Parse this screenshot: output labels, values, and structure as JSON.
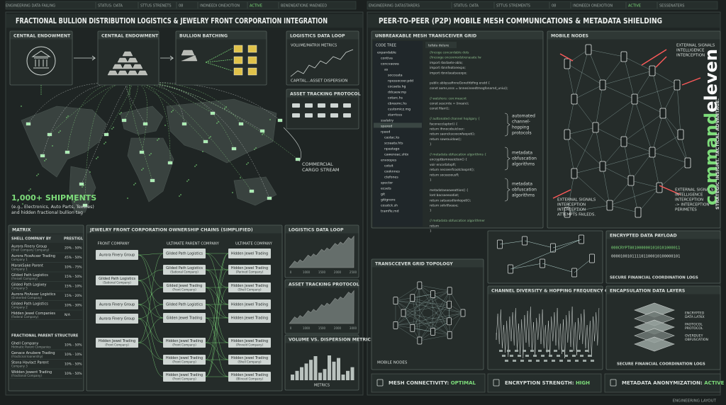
{
  "status_left": [
    "ENGINEERING DATA FAILING",
    "STATUS: DATA",
    "STTUS STRENETS",
    "08",
    "INDNEEDI ONEXOTION",
    "ACTIVE",
    "BENENEATIONE MAENEED"
  ],
  "status_right": [
    "ENGINEERING DATASTARERS",
    "STATUS: DATA",
    "STTUS STREMENTS",
    "08",
    "INDNEEDI ONEXOTION",
    "ACTIVE",
    "SESSENATERS"
  ],
  "left": {
    "title": "FRACTIONAL BULLION DISTRIBUTION LOGISTICS & JEWELRY FRONT CORPORATION INTEGRATION",
    "endowment1": "CENTRAL ENDOWMENT",
    "endowment2": "CENTRAL ENDOWMENT",
    "batching": "BULLION BATCHING",
    "loop": {
      "title": "LOGISTICS DATA LOOP",
      "subtitle": "VOLUME/MATRIX METRICS",
      "caption": "CAPITAL...ASSET DISPERSION"
    },
    "tracking": "ASSET TRACKING PROTOCOL",
    "cargo": [
      "COMMERCIAL",
      "CARGO STREAM"
    ],
    "shipments": "1,000+ SHIPMENTS",
    "shipments_note": [
      "(e.g., Electronics, Auto Parts, Textiles)",
      "and hidden fractional bullion tag"
    ],
    "matrix": {
      "title": "MATRIX",
      "headers": [
        "SHELL COMPANY BY",
        "PRESTIGL"
      ],
      "rows": [
        [
          "Aurora Finery Group",
          "(Shell Company Company)",
          "20% - 50%"
        ],
        [
          "Aurora FiceAcxer Trading",
          "Company 1",
          "45% - 50%"
        ],
        [
          "MarakSake Parent",
          "Company 1",
          "10% - 75%"
        ],
        [
          "Gilded Path Logistics",
          "(Freisell Company)",
          "15% - 50%"
        ],
        [
          "Gilded Path Logixey",
          "Company 5",
          "15% - 10%"
        ],
        [
          "Aurora FinAsser Logistics",
          "(Enmerted Company)",
          "15% - 20%"
        ],
        [
          "Gilded Path Logistics",
          "Company 2",
          "10% - 30%"
        ],
        [
          "Hidden Jewel Companies",
          "(Federal Company)",
          "N/A"
        ]
      ],
      "section": "FRACTIONAL PARENT STRUCTURE",
      "rows2": [
        [
          "Ghell Company",
          "Hidmatic Parent Companies",
          "10% - 50%"
        ],
        [
          "Genace Anubere Trading",
          "(Fracticnal Ioanershiy)",
          "10% - 10%"
        ],
        [
          "Stona Havlact Parent",
          "Company 3",
          "10% - 50%"
        ],
        [
          "Widden Jowent Trading",
          "(Fractional Company)",
          "10% - 50%"
        ]
      ]
    },
    "chains": {
      "title": "JEWELRY FRONT CORPORATION OWNERSHIP CHAINS (SIMPLIFIED)",
      "columns": [
        "FRONT COMPANY",
        "ULTIMATE PARENT COMPANY",
        "ULTIMATE COMPANY"
      ],
      "front": [
        {
          "name": "Aurora Finery Group"
        },
        {
          "name": "Gilded Path Logistics",
          "sub": "(Sational Company)"
        },
        {
          "name": "Aurora Finery Group"
        },
        {
          "name": "Aurora Finery Group"
        },
        {
          "name": "Hidden Jewel Trading",
          "sub": "(Front Company)"
        }
      ],
      "parent": [
        {
          "name": "Gilded Path Logistics"
        },
        {
          "name": "Gilded Path Logistics",
          "sub": "(Sational Company)"
        },
        {
          "name": "Gilded Jewel Trading",
          "sub": "(Front Company)"
        },
        {
          "name": "Gilded Path Logistics"
        },
        {
          "name": "Gilden Jewel Trading"
        },
        {
          "name": "Hidden Jewel Trading",
          "sub": "(Front Company)"
        },
        {
          "name": "Hidden Jewel Trading",
          "sub": "(Front Company)"
        },
        {
          "name": "Hidden Jewel Trading",
          "sub": "(Front Company)"
        }
      ],
      "ultimate": [
        {
          "name": "Hidden Jewel Trading"
        },
        {
          "name": "Hidden Jewel Trading",
          "sub": "(Parined Company)"
        },
        {
          "name": "Hidden Jewel Trading",
          "sub": "(Shell Company)"
        },
        {
          "name": "Hidden Jewel Trading"
        },
        {
          "name": "Hidden Jewel Trading"
        },
        {
          "name": "Hidden Jewel Trading",
          "sub": "(Pinneld Company)"
        },
        {
          "name": "Hidden Jewel Trading",
          "sub": "(Shell Company)"
        },
        {
          "name": "Hidden Jewel Trading",
          "sub": "(Blinced Company)"
        }
      ]
    },
    "mini": [
      {
        "title": "LOGISTICS DATA LOOP",
        "ticks": [
          "0",
          "1000",
          "1500",
          "2000",
          "2500"
        ]
      },
      {
        "title": "ASSET TRACKING PROTOCOL",
        "ticks": [
          "0",
          "1000",
          "1500",
          "2000",
          "3000"
        ]
      },
      {
        "title": "VOLUME VS. DISPERSION METRICS",
        "label": "METRICS"
      }
    ]
  },
  "right": {
    "title": "PEER-TO-PEER (P2P) MOBILE MESH COMMUNICATIONS & METADATA SHIELDING",
    "grid": {
      "title": "UNBREAKABLE MESH TRANSCEIVER GRID",
      "tree_title": "CODE TREE",
      "tab": "tefala delure",
      "tree": [
        "expandable",
        "contiva",
        "concvaewa",
        "as",
        "socceata",
        "npessocoer.pdd",
        "cocaeta.hg",
        "ddcaew.mp",
        "cotarc.hs",
        "cbreemc.hs",
        "customicz.mg",
        "starrtces",
        "ssalatry",
        "spaxed",
        "rpaed",
        "castac.ks",
        "scoaata.hts",
        "npastago",
        "cawenoac.shtx",
        "envoopes",
        "cotsit",
        "cooknnes",
        "ctefones",
        "spector",
        "ecsets",
        "git",
        "gitignore",
        "cosstck.sh",
        "tramfle.md"
      ],
      "code": [
        "//incoge concordable dots",
        "//incooge onconmodstrenasate lw",
        "import rbsdaete-ablo;",
        "import rbnnfeatseexpo;",
        "import rbnnlseatseexpo;",
        "",
        "public ablqcasfinneGonethbfing eratd {",
        "  const aoms,ssss = bnnesineedtmegfonarnd_uniu();",
        "",
        "  // watshors: con:meacnt",
        "  const sescrnte = (ineaiv);",
        "  const filarr();",
        "",
        "  // auttonated channel hoplgary {",
        "  faconecclaptor() {",
        "    return ifnnocobuicloer;",
        "    return saenckscoocwfaopet();",
        "    return sowrouidow();",
        "  }",
        "",
        "  // metadata obfuscation algorithms {",
        "  encryptbsmneeiction() {",
        "    voir encortatvpfi;",
        "    return necseerfcootcloopnt();",
        "    return soceeoousfl;",
        "  }",
        "",
        "  metadataeasweattion() {",
        "    lont bacsaeeoatiot;",
        "    return satsaosdlonkopetl();",
        "    return sotvtfsease;",
        "  }",
        "",
        "  // metadata obfuscation algorithmer",
        "  return",
        "}"
      ],
      "notes": [
        [
          "automated",
          "channel-",
          "hopping",
          "protocols"
        ],
        [
          "metadata",
          "obfuscation",
          "algorithms"
        ],
        [
          "metadata",
          "obfuscation",
          "algorithms"
        ]
      ]
    },
    "nodes": {
      "title": "MOBILE NODES",
      "alert_top": [
        "EXTERNAL SIGNALS",
        "INTELLIGENCE",
        "INTERCEPTION"
      ],
      "alert_left": [
        "EXTERNAL SIGNALS",
        "INTERCEPTION",
        "INTERCEPTION",
        "ATTEMPTS FAILEDS."
      ],
      "alert_right": [
        "EXTERNAL SIGNALS",
        "INTELLIGENCE",
        "INTERCEPTION",
        "-> INTERCEPTION",
        "PERIMETES"
      ]
    },
    "brand": [
      "command",
      "eleven"
    ],
    "tagline": "STRATEGIC INSIGHT. TACTICAL ADVANTAGE.",
    "topology": {
      "title": "TRANSCCEVER GRID TOPOLOGY",
      "label": "MOBILE NODES"
    },
    "channel": {
      "title": "CHANNEL DIVERSITY & HOPPING FREQUENCY GRAPH"
    },
    "payload": {
      "title": "ENCRYPTED DATA PAYLOAD",
      "bits": [
        "000CRYPT8010000001010101000011",
        "000010010111101100010100000101"
      ],
      "caption": "SECURE FINANCIAL COORDINATION LOGS"
    },
    "layers": {
      "title": "ENCAPSULATION DATA LAYERS",
      "labels": [
        [
          "ENCRYPTED",
          "DATA LATKX"
        ],
        [
          "PAOTOCOL",
          "PROTOCOL"
        ],
        [
          "OVERDUEY",
          "OBFUSCATION"
        ]
      ],
      "caption": "SECURE FINANCIAL COORDINATION LOGS"
    },
    "status": [
      "MESH CONNECTIVITY: ",
      "OPTIMAL",
      "ENCRYPTION STRENGTH: ",
      "HIGH",
      "METADATA ANONYMIZATION: ",
      "ACTIVE"
    ]
  },
  "footer": "ENGINEERING LAYOUT"
}
